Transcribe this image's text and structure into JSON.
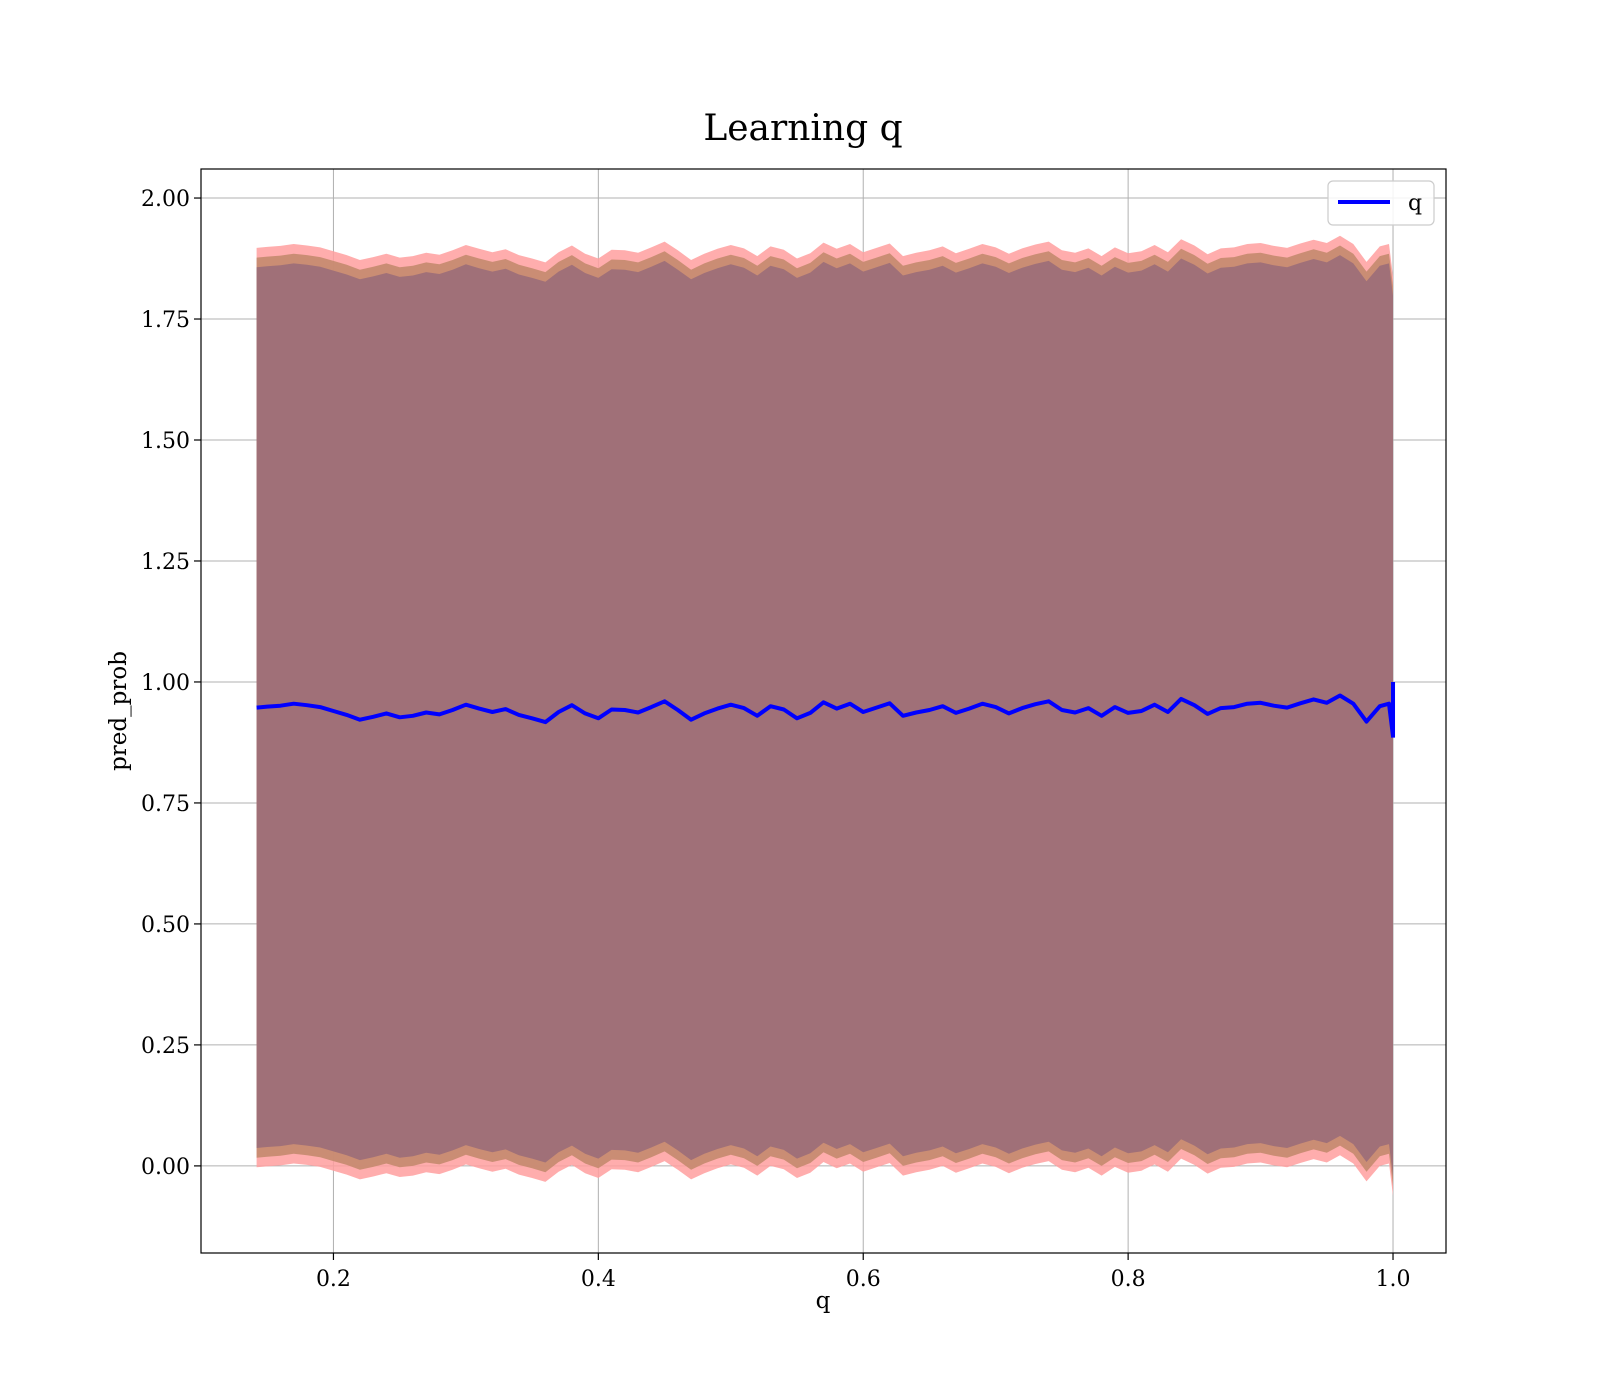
{
  "colors": {
    "line": "#0000ff",
    "outer_band": "#ff9f9f",
    "mid_band": "#c4896e",
    "inner_band": "#a07078",
    "grid": "#b0b0b0"
  },
  "chart_data": {
    "type": "line",
    "title": "Learning q",
    "xlabel": "q",
    "ylabel": "pred_prob",
    "xlim": [
      0.1,
      1.04
    ],
    "ylim": [
      -0.18,
      2.06
    ],
    "xticks": [
      0.2,
      0.4,
      0.6,
      0.8,
      1.0
    ],
    "xtick_labels": [
      "0.2",
      "0.4",
      "0.6",
      "0.8",
      "1.0"
    ],
    "yticks": [
      0.0,
      0.25,
      0.5,
      0.75,
      1.0,
      1.25,
      1.5,
      1.75,
      2.0
    ],
    "ytick_labels": [
      "0.00",
      "0.25",
      "0.50",
      "0.75",
      "1.00",
      "1.25",
      "1.50",
      "1.75",
      "2.00"
    ],
    "grid": true,
    "legend_position": "top-right",
    "series": [
      {
        "name": "q",
        "x": [
          0.142,
          0.15,
          0.16,
          0.17,
          0.18,
          0.19,
          0.2,
          0.21,
          0.22,
          0.23,
          0.24,
          0.25,
          0.26,
          0.27,
          0.28,
          0.29,
          0.3,
          0.31,
          0.32,
          0.33,
          0.34,
          0.35,
          0.36,
          0.37,
          0.38,
          0.39,
          0.4,
          0.41,
          0.42,
          0.43,
          0.44,
          0.45,
          0.46,
          0.47,
          0.48,
          0.49,
          0.5,
          0.51,
          0.52,
          0.53,
          0.54,
          0.55,
          0.56,
          0.57,
          0.58,
          0.59,
          0.6,
          0.61,
          0.62,
          0.63,
          0.64,
          0.65,
          0.66,
          0.67,
          0.68,
          0.69,
          0.7,
          0.71,
          0.72,
          0.73,
          0.74,
          0.75,
          0.76,
          0.77,
          0.78,
          0.79,
          0.8,
          0.81,
          0.82,
          0.83,
          0.84,
          0.85,
          0.86,
          0.87,
          0.88,
          0.89,
          0.9,
          0.91,
          0.92,
          0.93,
          0.94,
          0.95,
          0.96,
          0.97,
          0.98,
          0.99,
          0.997,
          1.0
        ],
        "y": [
          0.947,
          0.949,
          0.951,
          0.955,
          0.952,
          0.948,
          0.94,
          0.932,
          0.922,
          0.928,
          0.935,
          0.927,
          0.93,
          0.937,
          0.933,
          0.942,
          0.953,
          0.945,
          0.938,
          0.944,
          0.932,
          0.925,
          0.917,
          0.938,
          0.952,
          0.935,
          0.925,
          0.943,
          0.942,
          0.937,
          0.948,
          0.96,
          0.942,
          0.922,
          0.935,
          0.945,
          0.953,
          0.946,
          0.93,
          0.95,
          0.943,
          0.925,
          0.936,
          0.958,
          0.945,
          0.955,
          0.938,
          0.947,
          0.956,
          0.93,
          0.937,
          0.942,
          0.95,
          0.936,
          0.945,
          0.955,
          0.948,
          0.935,
          0.946,
          0.954,
          0.96,
          0.942,
          0.937,
          0.946,
          0.93,
          0.948,
          0.936,
          0.94,
          0.953,
          0.938,
          0.965,
          0.952,
          0.934,
          0.946,
          0.948,
          0.955,
          0.957,
          0.951,
          0.947,
          0.956,
          0.964,
          0.957,
          0.972,
          0.955,
          0.918,
          0.95,
          0.955,
          0.888
        ]
      }
    ],
    "band": {
      "outer_half_width": 0.95,
      "mid_half_width": 0.93,
      "inner_half_width": 0.91
    }
  }
}
